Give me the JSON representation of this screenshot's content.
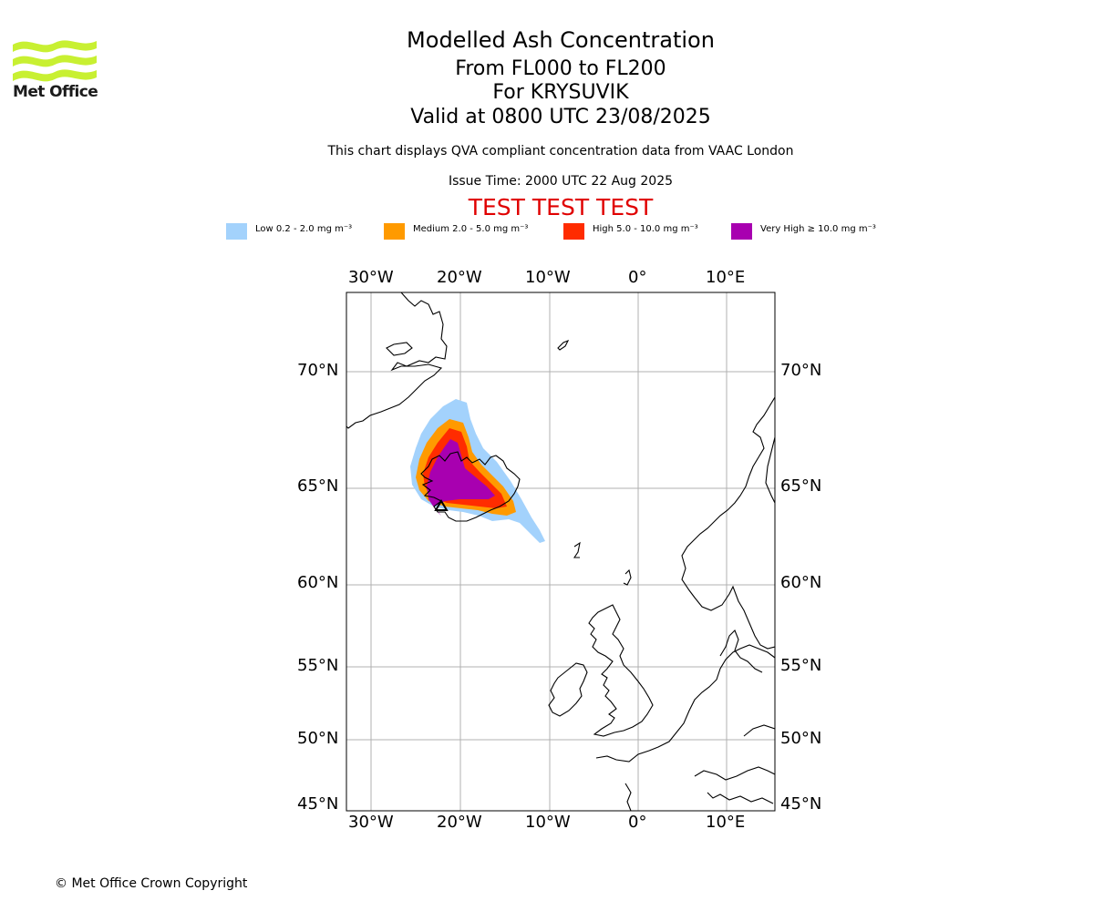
{
  "brand": {
    "name": "Met Office",
    "logo_icon": "met-office-waves-icon",
    "logo_color": "#c8f032"
  },
  "header": {
    "title": "Modelled Ash Concentration",
    "levels": "From FL000 to FL200",
    "volcano": "For KRYSUVIK",
    "valid": "Valid at 0800 UTC 23/08/2025",
    "description": "This chart displays QVA compliant concentration data from VAAC London",
    "issue_time": "Issue Time: 2000 UTC 22 Aug 2025",
    "test_banner": "TEST TEST TEST",
    "test_color": "#e00000"
  },
  "legend": [
    {
      "label": "Low 0.2 - 2.0 mg m⁻³",
      "color": "#a3d2fc"
    },
    {
      "label": "Medium 2.0 - 5.0 mg m⁻³",
      "color": "#ff9a00"
    },
    {
      "label": "High 5.0 - 10.0 mg m⁻³",
      "color": "#ff2c00"
    },
    {
      "label": "Very High  ≥  10.0 mg m⁻³",
      "color": "#a800b0"
    }
  ],
  "map": {
    "lon_labels": [
      "30°W",
      "20°W",
      "10°W",
      "0°",
      "10°E"
    ],
    "lat_labels": [
      "70°N",
      "65°N",
      "60°N",
      "55°N",
      "50°N",
      "45°N"
    ],
    "gridline_color": "#b0b0b0",
    "coastline_color": "#000000"
  },
  "footer": {
    "copyright": "© Met Office Crown Copyright"
  }
}
